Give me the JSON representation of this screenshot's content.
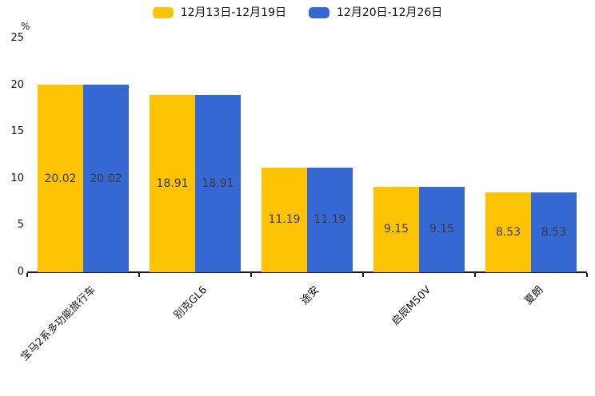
{
  "chart_data": {
    "type": "bar",
    "title": "",
    "categories": [
      "宝马2系多功能旅行车",
      "别克GL6",
      "途安",
      "启辰M50V",
      "夏朗"
    ],
    "series": [
      {
        "name": "12月13日-12月19日",
        "color": "#FCC405",
        "values": [
          20.02,
          18.91,
          11.19,
          9.15,
          8.53
        ]
      },
      {
        "name": "12月20日-12月26日",
        "color": "#3568D3",
        "values": [
          20.02,
          18.91,
          11.19,
          9.15,
          8.53
        ]
      }
    ],
    "value_labels": [
      "20.02",
      "18.91",
      "11.19",
      "9.15",
      "8.53"
    ],
    "xlabel": "",
    "ylabel": "%",
    "ylim": [
      0,
      25
    ],
    "yticks": [
      25,
      20,
      15,
      10,
      5,
      0
    ],
    "grid": false,
    "legend_position": "top",
    "value_label_position": "inside-center",
    "xtick_rotation_deg": 45
  },
  "style": {
    "axis_color": "#1a1a1a",
    "value_label_color": "#3a3a3a",
    "tick_label_color": "#111111"
  }
}
